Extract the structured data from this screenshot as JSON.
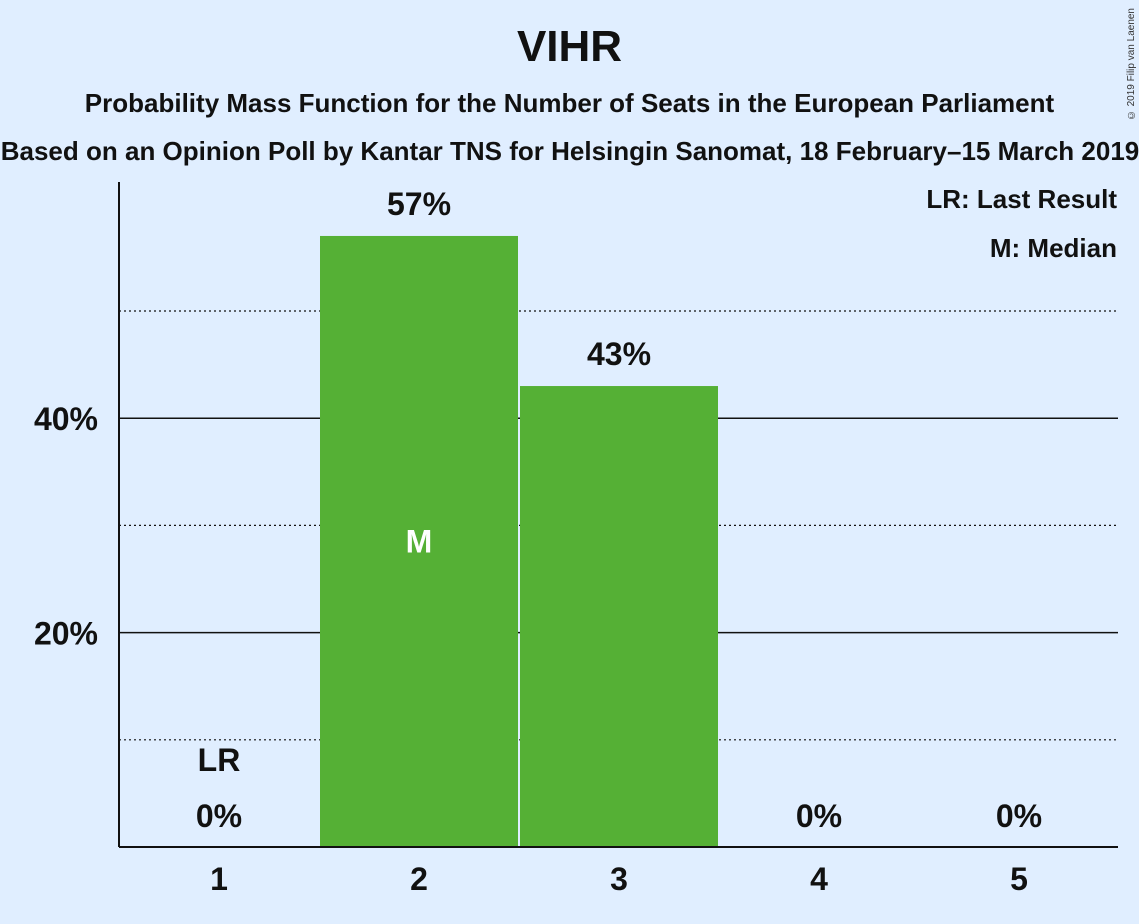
{
  "title": "VIHR",
  "subtitle": "Probability Mass Function for the Number of Seats in the European Parliament",
  "subtitle2": "Based on an Opinion Poll by Kantar TNS for Helsingin Sanomat, 18 February–15 March 2019",
  "copyright": "© 2019 Filip van Laenen",
  "legend": {
    "last_result": "LR: Last Result",
    "median": "M: Median"
  },
  "colors": {
    "background": "#e0eeff",
    "bar": "#55b035",
    "axis": "#111111"
  },
  "chart_data": {
    "type": "bar",
    "categories": [
      "1",
      "2",
      "3",
      "4",
      "5"
    ],
    "values": [
      0,
      57,
      43,
      0,
      0
    ],
    "value_labels": [
      "0%",
      "57%",
      "43%",
      "0%",
      "0%"
    ],
    "ylim": [
      0,
      62
    ],
    "y_ticks": [
      {
        "value": 20,
        "label": "20%"
      },
      {
        "value": 40,
        "label": "40%"
      }
    ],
    "y_minor_gridlines": [
      10,
      30,
      50
    ],
    "last_result_index": 0,
    "last_result_label": "LR",
    "median_index": 1,
    "median_label": "M",
    "legend_placement": "top-right",
    "grid": true
  }
}
